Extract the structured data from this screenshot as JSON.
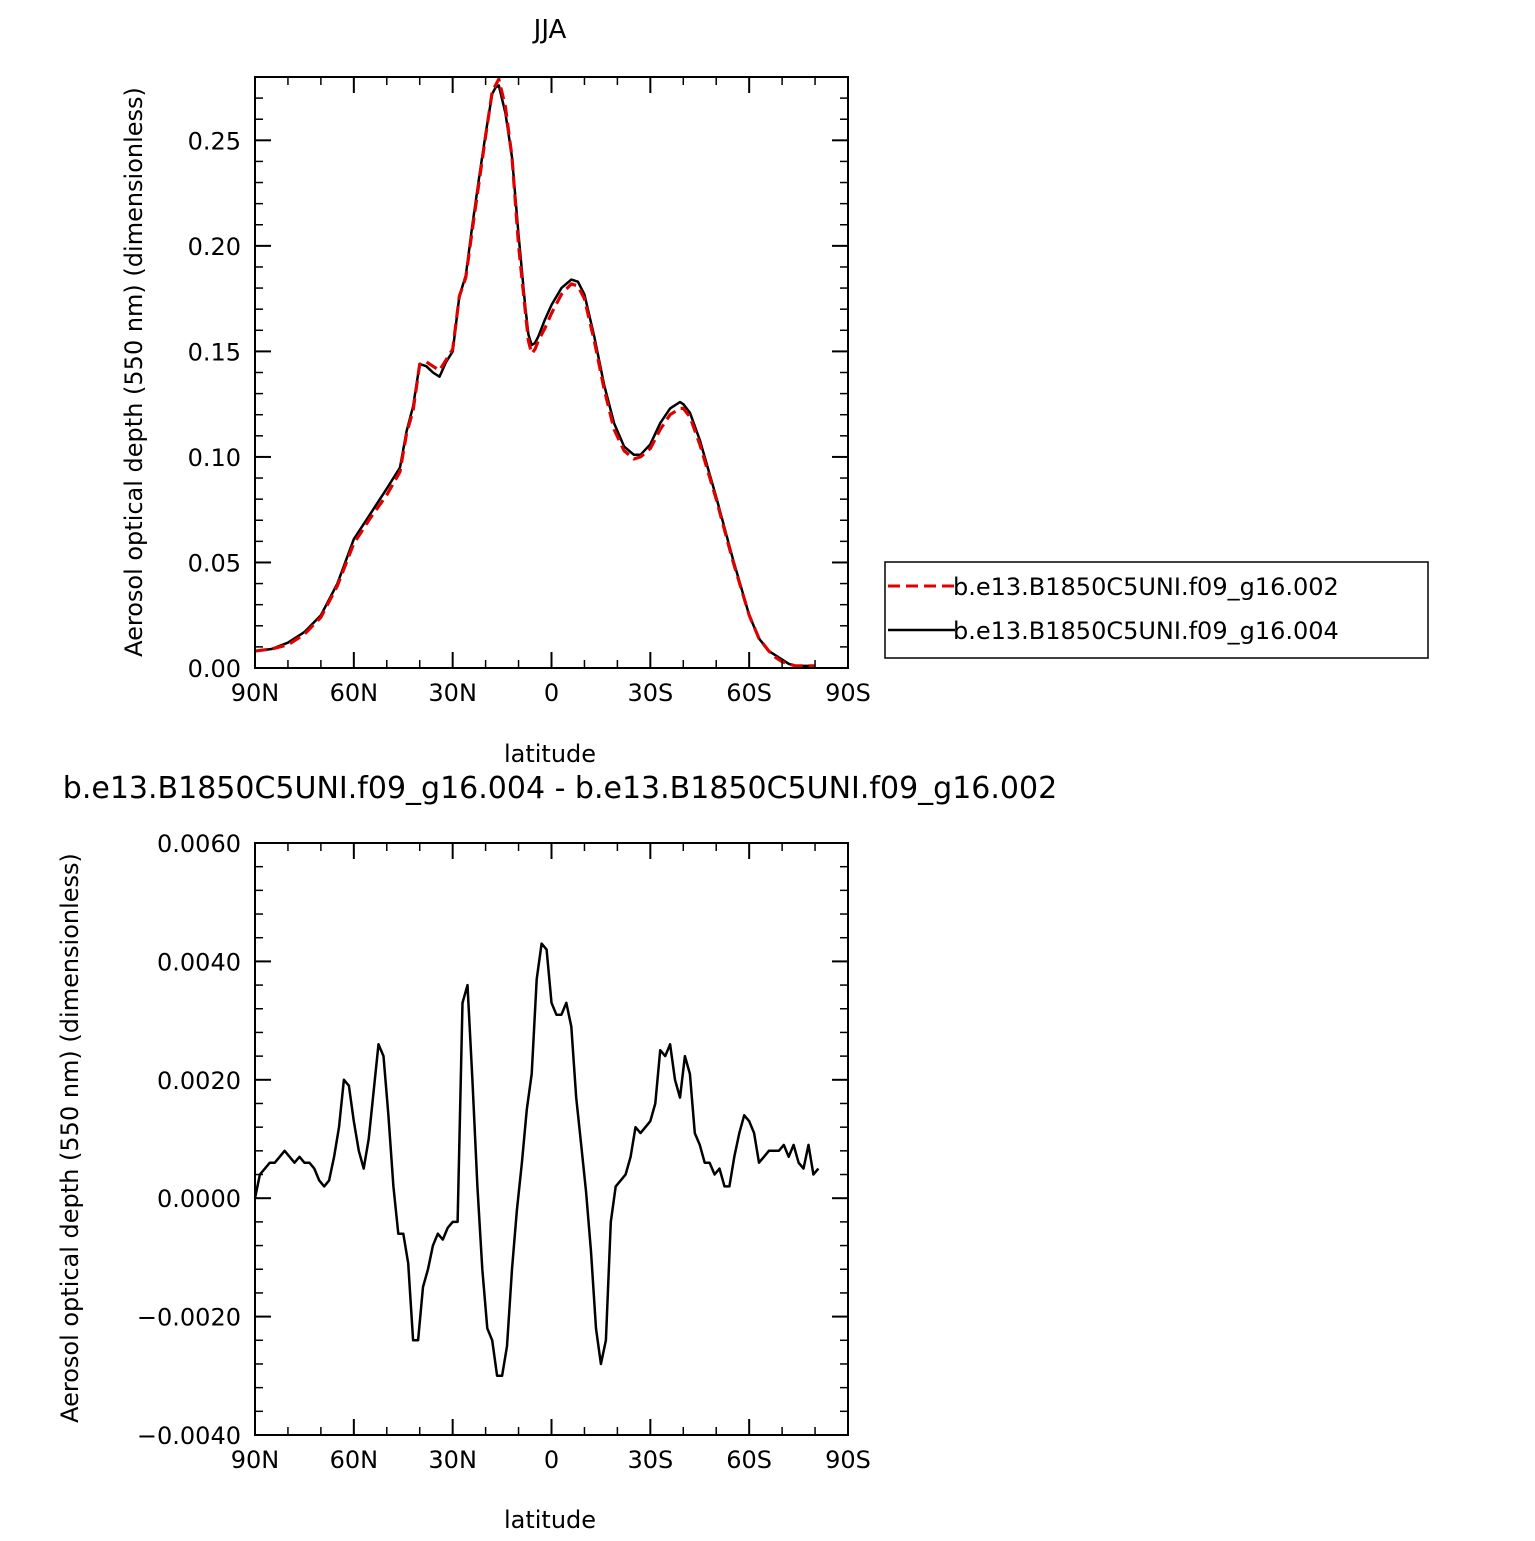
{
  "chart_data": [
    {
      "type": "line",
      "title": "JJA",
      "xlabel": "latitude",
      "ylabel": "Aerosol optical depth (550 nm) (dimensionless)",
      "xlim": [
        90,
        -90
      ],
      "ylim": [
        0.0,
        0.28
      ],
      "xticks": [
        90,
        60,
        30,
        0,
        -30,
        -60,
        -90
      ],
      "xtick_labels": [
        "90N",
        "60N",
        "30N",
        "0",
        "30S",
        "60S",
        "90S"
      ],
      "yticks": [
        0.0,
        0.05,
        0.1,
        0.15,
        0.2,
        0.25
      ],
      "ytick_labels": [
        "0.00",
        "0.05",
        "0.10",
        "0.15",
        "0.20",
        "0.25"
      ],
      "grid": false,
      "legend_position": "right",
      "series": [
        {
          "name": "b.e13.B1850C5UNI.f09_g16.002",
          "color": "#e00000",
          "dash": "dashed",
          "x": [
            90,
            85,
            80,
            75,
            70,
            65,
            60,
            55,
            50,
            46,
            44,
            42,
            40,
            38,
            36,
            34,
            32,
            30,
            28,
            26,
            24,
            22,
            20,
            18,
            17,
            16,
            14,
            12,
            10,
            8,
            7,
            6,
            5,
            4,
            2,
            0,
            -3,
            -6,
            -8,
            -10,
            -13,
            -16,
            -19,
            -22,
            -25,
            -27,
            -30,
            -33,
            -36,
            -39,
            -40,
            -42,
            -45,
            -50,
            -55,
            -60,
            -63,
            -66,
            -68,
            -70,
            -72,
            -74,
            -76,
            -78,
            -80
          ],
          "values": [
            0.008,
            0.009,
            0.011,
            0.016,
            0.024,
            0.039,
            0.059,
            0.071,
            0.082,
            0.093,
            0.111,
            0.122,
            0.144,
            0.145,
            0.143,
            0.141,
            0.146,
            0.151,
            0.176,
            0.185,
            0.208,
            0.23,
            0.252,
            0.273,
            0.276,
            0.279,
            0.266,
            0.242,
            0.2,
            0.17,
            0.155,
            0.149,
            0.151,
            0.155,
            0.161,
            0.168,
            0.177,
            0.182,
            0.181,
            0.175,
            0.155,
            0.132,
            0.113,
            0.103,
            0.099,
            0.1,
            0.104,
            0.113,
            0.12,
            0.123,
            0.123,
            0.119,
            0.106,
            0.08,
            0.051,
            0.025,
            0.014,
            0.008,
            0.005,
            0.003,
            0.002,
            0.001,
            0.001,
            0.001,
            0.001
          ]
        },
        {
          "name": "b.e13.B1850C5UNI.f09_g16.004",
          "color": "#000000",
          "dash": "solid",
          "x": [
            90,
            85,
            80,
            75,
            70,
            65,
            60,
            55,
            50,
            46,
            44,
            42,
            40,
            38,
            36,
            34,
            32,
            30,
            28,
            26,
            24,
            22,
            20,
            18,
            17,
            16,
            14,
            12,
            10,
            8,
            7,
            6,
            5,
            4,
            2,
            0,
            -3,
            -6,
            -8,
            -10,
            -13,
            -16,
            -19,
            -22,
            -25,
            -27,
            -30,
            -33,
            -36,
            -39,
            -40,
            -42,
            -45,
            -50,
            -55,
            -60,
            -63,
            -66,
            -68,
            -70,
            -72,
            -74,
            -76,
            -78,
            -80
          ],
          "values": [
            0.008,
            0.009,
            0.012,
            0.017,
            0.025,
            0.04,
            0.061,
            0.073,
            0.085,
            0.095,
            0.112,
            0.124,
            0.144,
            0.143,
            0.14,
            0.138,
            0.145,
            0.15,
            0.176,
            0.186,
            0.21,
            0.232,
            0.253,
            0.272,
            0.275,
            0.276,
            0.263,
            0.242,
            0.205,
            0.172,
            0.158,
            0.153,
            0.154,
            0.157,
            0.165,
            0.172,
            0.18,
            0.184,
            0.183,
            0.177,
            0.157,
            0.134,
            0.116,
            0.105,
            0.101,
            0.101,
            0.106,
            0.116,
            0.123,
            0.126,
            0.125,
            0.121,
            0.108,
            0.081,
            0.052,
            0.025,
            0.014,
            0.008,
            0.006,
            0.004,
            0.002,
            0.001,
            0.001,
            0.001,
            0.001
          ]
        }
      ]
    },
    {
      "type": "line",
      "title": "b.e13.B1850C5UNI.f09_g16.004 - b.e13.B1850C5UNI.f09_g16.002",
      "xlabel": "latitude",
      "ylabel": "Aerosol optical depth (550 nm) (dimensionless)",
      "xlim": [
        90,
        -90
      ],
      "ylim": [
        -0.004,
        0.006
      ],
      "xticks": [
        90,
        60,
        30,
        0,
        -30,
        -60,
        -90
      ],
      "xtick_labels": [
        "90N",
        "60N",
        "30N",
        "0",
        "30S",
        "60S",
        "90S"
      ],
      "yticks": [
        -0.004,
        -0.002,
        0.0,
        0.002,
        0.004,
        0.006
      ],
      "ytick_labels": [
        "−0.0040",
        "−0.0020",
        "0.0000",
        "0.0020",
        "0.0040",
        "0.0060"
      ],
      "grid": false,
      "series": [
        {
          "color": "#000000",
          "dash": "solid",
          "x": [
            90,
            88.5,
            87,
            85.5,
            84,
            82.5,
            81,
            79.5,
            78,
            76.5,
            75,
            73.5,
            72,
            70.5,
            69,
            67.5,
            66,
            64.5,
            63,
            61.5,
            60,
            58.5,
            57,
            55.5,
            54,
            52.5,
            51,
            49.5,
            48,
            46.5,
            45,
            43.5,
            42,
            40.5,
            39,
            37.5,
            36,
            34.5,
            33,
            31.5,
            30,
            28.5,
            27,
            25.5,
            24,
            22.5,
            21,
            19.5,
            18,
            16.5,
            15,
            13.5,
            12,
            10.5,
            9,
            7.5,
            6,
            4.5,
            3,
            1.5,
            0,
            -1.5,
            -3,
            -4.5,
            -6,
            -7.5,
            -9,
            -10.5,
            -12,
            -13.5,
            -15,
            -16.5,
            -18,
            -19.5,
            -21,
            -22.5,
            -24,
            -25.5,
            -27,
            -28.5,
            -30,
            -31.5,
            -33,
            -34.5,
            -36,
            -37.5,
            -39,
            -40.5,
            -42,
            -43.5,
            -45,
            -46.5,
            -48,
            -49.5,
            -51,
            -52.5,
            -54,
            -55.5,
            -57,
            -58.5,
            -60,
            -61.5,
            -63,
            -64.5,
            -66,
            -67.5,
            -69,
            -70.5,
            -72,
            -73.5,
            -75,
            -76.5,
            -78,
            -79.5,
            -81
          ],
          "values": [
            0.0,
            0.0004,
            0.0005,
            0.0006,
            0.0006,
            0.0007,
            0.0008,
            0.0007,
            0.0006,
            0.0007,
            0.0006,
            0.0006,
            0.0005,
            0.0003,
            0.0002,
            0.0003,
            0.0007,
            0.0012,
            0.002,
            0.0019,
            0.0013,
            0.0008,
            0.0005,
            0.001,
            0.0018,
            0.0026,
            0.0024,
            0.0014,
            0.0002,
            -0.0006,
            -0.0006,
            -0.0011,
            -0.0024,
            -0.0024,
            -0.0015,
            -0.0012,
            -0.0008,
            -0.0006,
            -0.0007,
            -0.0005,
            -0.0004,
            -0.0004,
            0.0033,
            0.0036,
            0.002,
            0.0002,
            -0.0012,
            -0.0022,
            -0.0024,
            -0.003,
            -0.003,
            -0.0025,
            -0.0012,
            -0.0002,
            0.0006,
            0.0015,
            0.0021,
            0.0037,
            0.0043,
            0.0042,
            0.0033,
            0.0031,
            0.0031,
            0.0033,
            0.0029,
            0.0017,
            0.0009,
            0.0001,
            -0.0009,
            -0.0022,
            -0.0028,
            -0.0024,
            -0.0004,
            0.0002,
            0.0003,
            0.0004,
            0.0007,
            0.0012,
            0.0011,
            0.0012,
            0.0013,
            0.0016,
            0.0025,
            0.0024,
            0.0026,
            0.002,
            0.0017,
            0.0024,
            0.0021,
            0.0011,
            0.0009,
            0.0006,
            0.0006,
            0.0004,
            0.0005,
            0.0002,
            0.0002,
            0.0007,
            0.0011,
            0.0014,
            0.0013,
            0.0011,
            0.0006,
            0.0007,
            0.0008,
            0.0008,
            0.0008,
            0.0009,
            0.0007,
            0.0009,
            0.0006,
            0.0005,
            0.0009,
            0.0004,
            0.0005
          ]
        }
      ]
    }
  ]
}
